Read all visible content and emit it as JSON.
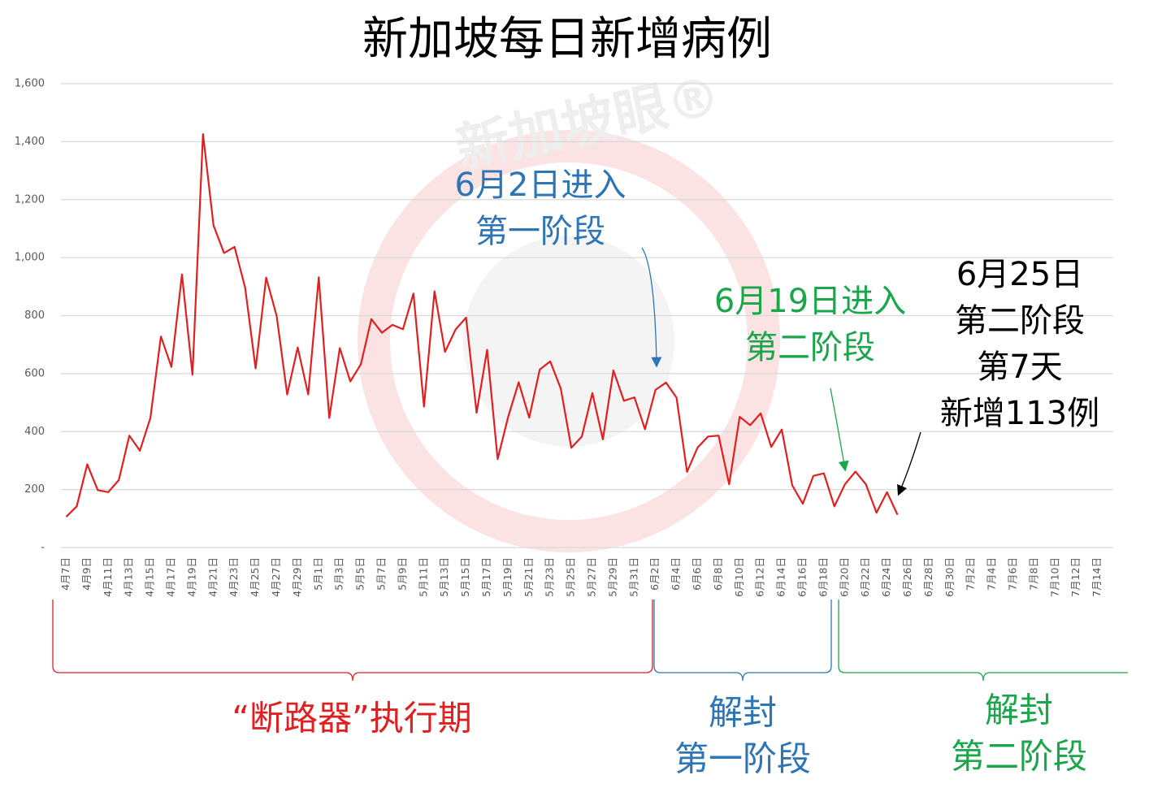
{
  "chart_data": {
    "type": "line",
    "title": "新加坡每日新增病例",
    "watermark": "新加坡眼®",
    "categories": [
      "4月7日",
      null,
      "4月9日",
      null,
      "4月11日",
      null,
      "4月13日",
      null,
      "4月15日",
      null,
      "4月17日",
      null,
      "4月19日",
      null,
      "4月21日",
      null,
      "4月23日",
      null,
      "4月25日",
      null,
      "4月27日",
      null,
      "4月29日",
      null,
      "5月1日",
      null,
      "5月3日",
      null,
      "5月5日",
      null,
      "5月7日",
      null,
      "5月9日",
      null,
      "5月11日",
      null,
      "5月13日",
      null,
      "5月15日",
      null,
      "5月17日",
      null,
      "5月19日",
      null,
      "5月21日",
      null,
      "5月23日",
      null,
      "5月25日",
      null,
      "5月27日",
      null,
      "5月29日",
      null,
      "5月31日",
      null,
      "6月2日",
      null,
      "6月4日",
      null,
      "6月6日",
      null,
      "6月8日",
      null,
      "6月10日",
      null,
      "6月12日",
      null,
      "6月14日",
      null,
      "6月16日",
      null,
      "6月18日",
      null,
      "6月20日",
      null,
      "6月22日",
      null,
      "6月24日",
      null,
      "6月26日",
      null,
      "6月28日",
      null,
      "6月30日",
      null,
      "7月2日",
      null,
      "7月4日",
      null,
      "7月6日",
      null,
      "7月8日",
      null,
      "7月10日",
      null,
      "7月12日",
      null,
      "7月14日",
      null
    ],
    "series": [
      {
        "name": "每日新增病例",
        "color": "#e02020",
        "values": [
          106,
          142,
          287,
          198,
          191,
          233,
          386,
          334,
          447,
          728,
          623,
          942,
          596,
          1426,
          1111,
          1016,
          1037,
          897,
          618,
          931,
          799,
          528,
          690,
          528,
          932,
          447,
          688,
          573,
          632,
          788,
          741,
          768,
          753,
          876,
          486,
          884,
          675,
          752,
          793,
          465,
          682,
          305,
          451,
          570,
          448,
          614,
          642,
          548,
          344,
          383,
          533,
          373,
          611,
          506,
          518,
          408,
          544,
          569,
          517,
          261,
          345,
          383,
          386,
          218,
          451,
          422,
          463,
          347,
          407,
          214,
          151,
          247,
          256,
          142,
          218,
          262,
          218,
          120,
          191,
          113,
          null,
          null,
          null,
          null,
          null,
          null,
          null,
          null,
          null,
          null,
          null,
          null,
          null,
          null,
          null,
          null,
          null,
          null,
          null,
          null
        ]
      }
    ],
    "ylim": [
      0,
      1600
    ],
    "yticks": [
      {
        "value": 0,
        "label": "-"
      },
      200,
      400,
      600,
      800,
      {
        "value": 1000,
        "label": "1,000"
      },
      {
        "value": 1200,
        "label": "1,200"
      },
      {
        "value": 1400,
        "label": "1,400"
      },
      {
        "value": 1600,
        "label": "1,600"
      }
    ],
    "grid": true,
    "annotations": [
      {
        "lines": [
          "6月2日进入",
          "第一阶段"
        ],
        "color": "#2e75b6"
      },
      {
        "lines": [
          "6月19日进入",
          "第二阶段"
        ],
        "color": "#1aa64a"
      },
      {
        "lines": [
          "6月25日",
          "第二阶段",
          "第7天",
          "新增113例"
        ],
        "color": "#000000"
      }
    ],
    "periods": [
      {
        "lines": [
          "“断路器”执行期"
        ],
        "color": "#e02020"
      },
      {
        "lines": [
          "解封",
          "第一阶段"
        ],
        "color": "#2e75b6"
      },
      {
        "lines": [
          "解封",
          "第二阶段"
        ],
        "color": "#1aa64a"
      }
    ]
  }
}
